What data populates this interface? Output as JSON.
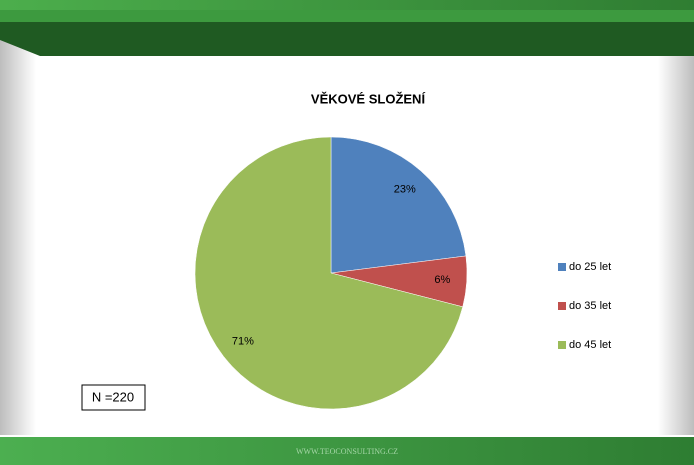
{
  "chart_data": {
    "type": "pie",
    "title": "VĚKOVÉ SLOŽENÍ",
    "categories": [
      "do 25 let",
      "do 35 let",
      "do 45 let"
    ],
    "values": [
      23,
      6,
      71
    ],
    "value_labels": [
      "23%",
      "6%",
      "71%"
    ],
    "colors": [
      "#4f81bd",
      "#c0504d",
      "#9bbb59"
    ],
    "legend": "right",
    "annotation": "N =220"
  },
  "footer": "WWW.TEOCONSULTING.CZ"
}
